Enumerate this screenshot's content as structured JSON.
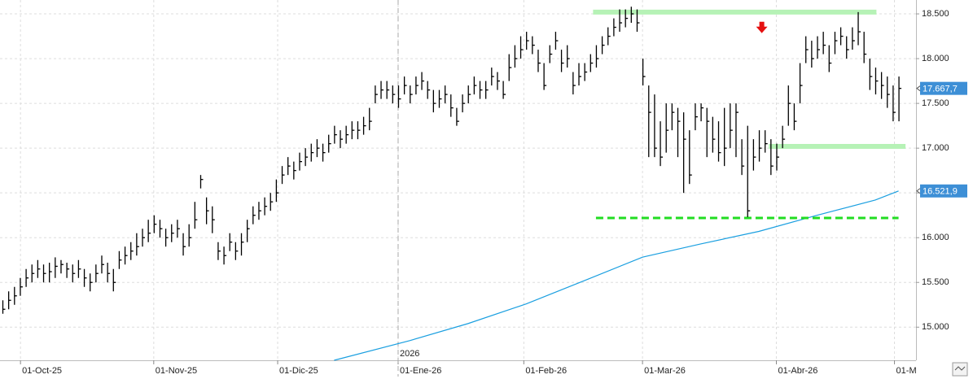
{
  "chart_data": {
    "type": "ohlc",
    "bar_color": "#000000",
    "xlim": [
      -0.42,
      157
    ],
    "ylim": [
      14630,
      18655
    ],
    "yticks": [
      {
        "value": 15000,
        "label": "15.000"
      },
      {
        "value": 15500,
        "label": "15.500"
      },
      {
        "value": 16000,
        "label": "16.000"
      },
      {
        "value": 16500,
        "label": "16.500"
      },
      {
        "value": 17000,
        "label": "17.000"
      },
      {
        "value": 17500,
        "label": "17.500"
      },
      {
        "value": 18000,
        "label": "18.000"
      },
      {
        "value": 18500,
        "label": "18.500"
      }
    ],
    "xticks": [
      {
        "value": 3.1,
        "label": "01-Oct-25"
      },
      {
        "value": 26,
        "label": "01-Nov-25"
      },
      {
        "value": 47.3,
        "label": "01-Dic-25"
      },
      {
        "value": 68,
        "label": "01-Ene-26"
      },
      {
        "value": 89.6,
        "label": "01-Feb-26"
      },
      {
        "value": 110,
        "label": "01-Mar-26"
      },
      {
        "value": 133,
        "label": "01-Abr-26"
      },
      {
        "value": 153.3,
        "label": "01-M"
      }
    ],
    "grid": true,
    "year_marker": {
      "x": 68,
      "label": "2026"
    },
    "high": [
      15300,
      15400,
      15450,
      15550,
      15650,
      15700,
      15750,
      15700,
      15720,
      15780,
      15750,
      15720,
      15700,
      15750,
      15650,
      15600,
      15700,
      15800,
      15720,
      15650,
      15850,
      15900,
      15950,
      16050,
      16100,
      16200,
      16250,
      16200,
      16100,
      16150,
      16200,
      16050,
      16150,
      16400,
      16700,
      16450,
      16350,
      15950,
      15900,
      16050,
      15950,
      16050,
      16200,
      16350,
      16400,
      16450,
      16500,
      16650,
      16800,
      16900,
      16850,
      16950,
      17000,
      17050,
      17100,
      17050,
      17150,
      17250,
      17200,
      17250,
      17300,
      17300,
      17350,
      17450,
      17700,
      17750,
      17750,
      17700,
      17700,
      17800,
      17700,
      17800,
      17850,
      17750,
      17650,
      17650,
      17700,
      17600,
      17450,
      17600,
      17700,
      17800,
      17750,
      17750,
      17900,
      17850,
      17750,
      18050,
      18150,
      18250,
      18300,
      18250,
      18100,
      17950,
      18150,
      18300,
      18100,
      18150,
      17850,
      17950,
      17950,
      18050,
      18150,
      18250,
      18350,
      18450,
      18550,
      18550,
      18580,
      18550,
      18000,
      17700,
      17600,
      17300,
      17500,
      17500,
      17450,
      17400,
      17200,
      17500,
      17500,
      17450,
      17350,
      17300,
      17450,
      17500,
      17500,
      17100,
      17250,
      17100,
      17200,
      17200,
      17100,
      17050,
      17250,
      17700,
      17500,
      17950,
      18250,
      18200,
      18250,
      18300,
      18150,
      18300,
      18350,
      18250,
      18350,
      18520,
      18300,
      18000,
      17900,
      17850,
      17800,
      17700,
      17800
    ],
    "low": [
      15150,
      15200,
      15250,
      15350,
      15450,
      15500,
      15550,
      15500,
      15500,
      15550,
      15600,
      15550,
      15500,
      15550,
      15450,
      15400,
      15500,
      15600,
      15500,
      15400,
      15650,
      15700,
      15750,
      15800,
      15900,
      15950,
      16050,
      16000,
      15900,
      15950,
      16000,
      15800,
      15900,
      16100,
      16550,
      16150,
      16050,
      15750,
      15700,
      15850,
      15750,
      15800,
      15950,
      16150,
      16200,
      16250,
      16300,
      16400,
      16600,
      16700,
      16650,
      16750,
      16800,
      16850,
      16900,
      16850,
      16950,
      17050,
      17000,
      17050,
      17100,
      17100,
      17150,
      17200,
      17500,
      17550,
      17550,
      17500,
      17450,
      17600,
      17500,
      17600,
      17650,
      17550,
      17400,
      17450,
      17500,
      17350,
      17250,
      17400,
      17500,
      17600,
      17550,
      17550,
      17700,
      17650,
      17550,
      17750,
      17900,
      18000,
      18100,
      18050,
      17850,
      17650,
      17950,
      18100,
      17850,
      17900,
      17600,
      17700,
      17750,
      17850,
      17900,
      18050,
      18150,
      18250,
      18300,
      18350,
      18400,
      18300,
      17700,
      16900,
      16900,
      16800,
      16950,
      17200,
      16900,
      16500,
      16600,
      17200,
      17300,
      16900,
      16950,
      16850,
      16800,
      17000,
      16900,
      16700,
      16230,
      16750,
      16850,
      16950,
      16700,
      16750,
      17000,
      17250,
      17200,
      17500,
      17950,
      17900,
      18000,
      18050,
      17850,
      18050,
      18150,
      18000,
      18100,
      18150,
      17950,
      17650,
      17600,
      17550,
      17450,
      17300,
      17300
    ],
    "close": [
      15200,
      15300,
      15350,
      15450,
      15550,
      15600,
      15650,
      15600,
      15620,
      15680,
      15700,
      15650,
      15600,
      15650,
      15550,
      15500,
      15600,
      15700,
      15600,
      15500,
      15750,
      15800,
      15850,
      15900,
      16000,
      16050,
      16150,
      16100,
      16000,
      16050,
      16100,
      15900,
      16000,
      16200,
      16650,
      16300,
      16200,
      15850,
      15800,
      15950,
      15850,
      15950,
      16100,
      16250,
      16300,
      16350,
      16400,
      16500,
      16700,
      16800,
      16750,
      16850,
      16900,
      16950,
      17000,
      16950,
      17050,
      17150,
      17100,
      17150,
      17200,
      17200,
      17250,
      17300,
      17600,
      17650,
      17650,
      17600,
      17550,
      17700,
      17600,
      17700,
      17750,
      17650,
      17500,
      17550,
      17600,
      17450,
      17300,
      17500,
      17600,
      17700,
      17650,
      17650,
      17800,
      17750,
      17600,
      17900,
      18000,
      18100,
      18200,
      18150,
      17950,
      17700,
      18050,
      18200,
      17950,
      18000,
      17700,
      17800,
      17850,
      17950,
      18000,
      18150,
      18250,
      18350,
      18400,
      18450,
      18500,
      18400,
      17800,
      17400,
      17000,
      16900,
      17200,
      17400,
      17300,
      17100,
      16700,
      17350,
      17450,
      17300,
      17100,
      16950,
      17000,
      17200,
      17400,
      16800,
      16300,
      16900,
      17000,
      17050,
      16800,
      16900,
      17100,
      17500,
      17300,
      17700,
      18100,
      18000,
      18100,
      18150,
      17950,
      18200,
      18250,
      18100,
      18200,
      18300,
      18050,
      17800,
      17750,
      17700,
      17600,
      17400,
      17667.7
    ],
    "moving_average": {
      "color": "#1a9fe0",
      "x": [
        57,
        70,
        80,
        90,
        100,
        110,
        120,
        130,
        140,
        150,
        154
      ],
      "values": [
        14630,
        14850,
        15040,
        15260,
        15520,
        15782,
        15930,
        16070,
        16250,
        16420,
        16521.9
      ]
    },
    "levels": [
      {
        "value": 18520,
        "x": [
          101.5,
          150.2
        ],
        "color": "#b6f2b6",
        "style": "solid"
      },
      {
        "value": 17020,
        "x": [
          131.7,
          155.2
        ],
        "color": "#b6f2b6",
        "style": "solid"
      },
      {
        "value": 16220,
        "x": [
          102,
          154
        ],
        "color": "#22dd22",
        "style": "dashed"
      }
    ],
    "arrow": {
      "x": 130.5,
      "y": 18330,
      "color": "#e51010"
    },
    "markers": [
      {
        "value": 17667.7,
        "label": "17.667,7",
        "color": "#3d8fd6"
      },
      {
        "value": 16521.9,
        "label": "16.521,9",
        "color": "#3d8fd6"
      }
    ]
  }
}
